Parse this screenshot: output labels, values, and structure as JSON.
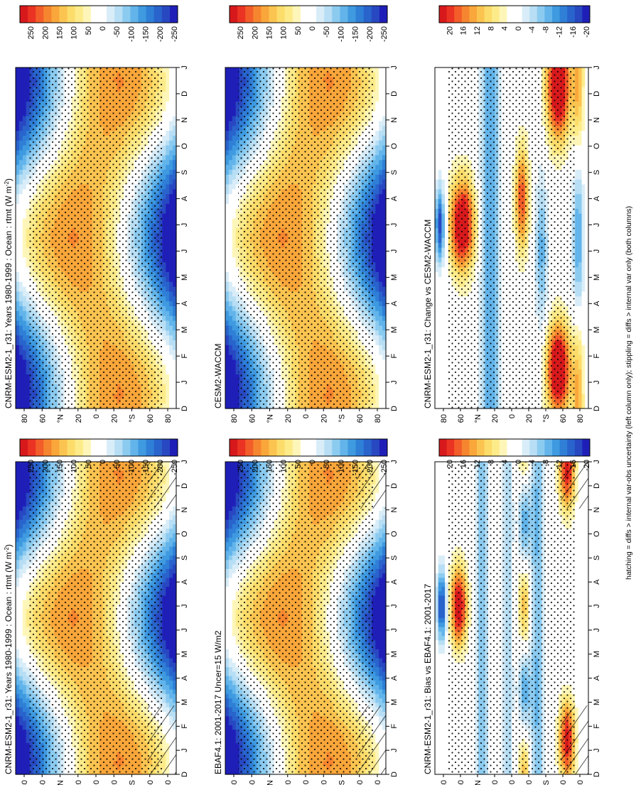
{
  "figure": {
    "footnote": "hatching = diffs > internal var-obs uncertainty (left column only); stippling = diffs > internal var only (both columns)"
  },
  "chart_data": [
    {
      "type": "heatmap",
      "id": "p_model",
      "title": "CNRM-ESM2-1_r31: Years 1980-1999 : Ocean : rtmt (W m",
      "title_sup": "-2",
      "title_close": ")",
      "x_ticks": [
        "D",
        "J",
        "F",
        "M",
        "A",
        "M",
        "J",
        "J",
        "A",
        "S",
        "O",
        "N",
        "D",
        "J"
      ],
      "y_ticks": [
        "80",
        "60",
        "°N",
        "20",
        "0",
        "20",
        "°S",
        "60",
        "80"
      ],
      "colorbar_ticks": [
        "250",
        "200",
        "150",
        "100",
        "50",
        "0",
        "-50",
        "-100",
        "-150",
        "-200",
        "-250"
      ],
      "field": "annual",
      "hatch": true
    },
    {
      "type": "heatmap",
      "id": "p_model_r",
      "title": "CNRM-ESM2-1_r31: Years 1980-1999 : Ocean : rtmt (W m",
      "title_sup": "-2",
      "title_close": ")",
      "x_ticks": [
        "D",
        "J",
        "F",
        "M",
        "A",
        "M",
        "J",
        "J",
        "A",
        "S",
        "O",
        "N",
        "D",
        "J"
      ],
      "y_ticks": [
        "80",
        "60",
        "°N",
        "20",
        "0",
        "20",
        "°S",
        "60",
        "80"
      ],
      "colorbar_ticks": [
        "250",
        "200",
        "150",
        "100",
        "50",
        "0",
        "-50",
        "-100",
        "-150",
        "-200",
        "-250"
      ],
      "field": "annual",
      "hatch": false
    },
    {
      "type": "heatmap",
      "id": "p_obs",
      "title": "EBAF4.1: 2001-2017 Uncer=15 W/m2",
      "x_ticks": [
        "D",
        "J",
        "F",
        "M",
        "A",
        "M",
        "J",
        "J",
        "A",
        "S",
        "O",
        "N",
        "D",
        "J"
      ],
      "y_ticks": [
        "80",
        "60",
        "°N",
        "20",
        "0",
        "20",
        "°S",
        "60",
        "80"
      ],
      "colorbar_ticks": [
        "250",
        "200",
        "150",
        "100",
        "50",
        "0",
        "-50",
        "-100",
        "-150",
        "-200",
        "-250"
      ],
      "field": "annual",
      "hatch": true
    },
    {
      "type": "heatmap",
      "id": "p_ref",
      "title": "CESM2-WACCM",
      "x_ticks": [
        "D",
        "J",
        "F",
        "M",
        "A",
        "M",
        "J",
        "J",
        "A",
        "S",
        "O",
        "N",
        "D",
        "J"
      ],
      "y_ticks": [
        "80",
        "60",
        "°N",
        "20",
        "0",
        "20",
        "°S",
        "60",
        "80"
      ],
      "colorbar_ticks": [
        "250",
        "200",
        "150",
        "100",
        "50",
        "0",
        "-50",
        "-100",
        "-150",
        "-200",
        "-250"
      ],
      "field": "annual",
      "hatch": false
    },
    {
      "type": "heatmap",
      "id": "p_bias",
      "title": "CNRM-ESM2-1_r31: Bias vs EBAF4.1: 2001-2017",
      "x_ticks": [
        "D",
        "J",
        "F",
        "M",
        "A",
        "M",
        "J",
        "J",
        "A",
        "S",
        "O",
        "N",
        "D",
        "J"
      ],
      "y_ticks": [
        "80",
        "60",
        "°N",
        "20",
        "0",
        "20",
        "°S",
        "60",
        "80"
      ],
      "colorbar_ticks": [
        "20",
        "16",
        "12",
        "8",
        "4",
        "0",
        "-4",
        "-8",
        "-12",
        "-16",
        "-20"
      ],
      "field": "bias",
      "hatch": true
    },
    {
      "type": "heatmap",
      "id": "p_change",
      "title": "CNRM-ESM2-1_r31: Change vs CESM2-WACCM",
      "x_ticks": [
        "D",
        "J",
        "F",
        "M",
        "A",
        "M",
        "J",
        "J",
        "A",
        "S",
        "O",
        "N",
        "D",
        "J"
      ],
      "y_ticks": [
        "80",
        "60",
        "°N",
        "20",
        "0",
        "20",
        "°S",
        "60",
        "80"
      ],
      "colorbar_ticks": [
        "20",
        "16",
        "12",
        "8",
        "4",
        "0",
        "-4",
        "-8",
        "-12",
        "-16",
        "-20"
      ],
      "field": "change",
      "hatch": false
    }
  ]
}
